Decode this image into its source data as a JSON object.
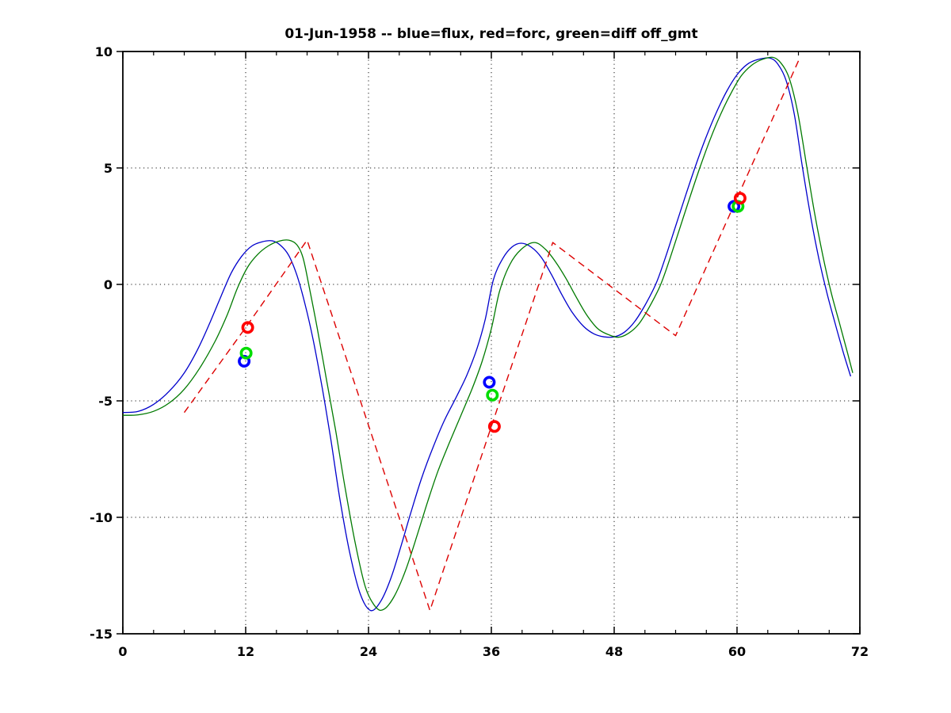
{
  "chart_data": {
    "type": "line",
    "title": "01-Jun-1958 -- blue=flux, red=forc, green=diff off_gmt",
    "xlabel": "",
    "ylabel": "",
    "xlim": [
      0,
      72
    ],
    "ylim": [
      -15,
      10
    ],
    "xticks": [
      0,
      12,
      24,
      36,
      48,
      60,
      72
    ],
    "yticks": [
      -15,
      -10,
      -5,
      0,
      5,
      10
    ],
    "x_minor_tick_step": 3,
    "grid": true,
    "legend_in_title": {
      "blue": "flux",
      "red": "forc",
      "green": "diff"
    },
    "series": [
      {
        "name": "flux",
        "color": "#0000cc",
        "style": "solid",
        "smooth": true,
        "points": [
          [
            0,
            -5.5
          ],
          [
            1.5,
            -5.45
          ],
          [
            3,
            -5.15
          ],
          [
            4.5,
            -4.6
          ],
          [
            6,
            -3.8
          ],
          [
            7.3,
            -2.8
          ],
          [
            8.5,
            -1.65
          ],
          [
            9.6,
            -0.5
          ],
          [
            10.6,
            0.5
          ],
          [
            11.6,
            1.2
          ],
          [
            12.6,
            1.65
          ],
          [
            13.6,
            1.83
          ],
          [
            14.6,
            1.87
          ],
          [
            15.4,
            1.68
          ],
          [
            16.2,
            1.25
          ],
          [
            17,
            0.4
          ],
          [
            17.8,
            -0.85
          ],
          [
            18.6,
            -2.4
          ],
          [
            19.5,
            -4.5
          ],
          [
            20.3,
            -6.6
          ],
          [
            21.2,
            -9.2
          ],
          [
            22.2,
            -11.6
          ],
          [
            23.2,
            -13.3
          ],
          [
            24.2,
            -14
          ],
          [
            25.2,
            -13.6
          ],
          [
            26.2,
            -12.6
          ],
          [
            27.2,
            -11.2
          ],
          [
            28.2,
            -9.7
          ],
          [
            29.2,
            -8.3
          ],
          [
            30.3,
            -7
          ],
          [
            31.4,
            -5.85
          ],
          [
            32.5,
            -4.9
          ],
          [
            33.6,
            -3.9
          ],
          [
            34.6,
            -2.75
          ],
          [
            35.4,
            -1.5
          ],
          [
            36.2,
            0.2
          ],
          [
            37.1,
            1.1
          ],
          [
            38,
            1.6
          ],
          [
            38.9,
            1.77
          ],
          [
            39.9,
            1.6
          ],
          [
            40.9,
            1.15
          ],
          [
            41.9,
            0.4
          ],
          [
            42.9,
            -0.45
          ],
          [
            43.9,
            -1.2
          ],
          [
            45,
            -1.8
          ],
          [
            46,
            -2.12
          ],
          [
            47,
            -2.25
          ],
          [
            48,
            -2.25
          ],
          [
            49,
            -2.05
          ],
          [
            50,
            -1.6
          ],
          [
            51,
            -0.9
          ],
          [
            52.1,
            0.05
          ],
          [
            53,
            1.15
          ],
          [
            54,
            2.5
          ],
          [
            55,
            3.85
          ],
          [
            56,
            5.15
          ],
          [
            57,
            6.35
          ],
          [
            58,
            7.4
          ],
          [
            59,
            8.3
          ],
          [
            60,
            9
          ],
          [
            61,
            9.45
          ],
          [
            62,
            9.65
          ],
          [
            63.2,
            9.72
          ],
          [
            64,
            9.45
          ],
          [
            64.8,
            8.75
          ],
          [
            65.6,
            7.3
          ],
          [
            66.4,
            5
          ],
          [
            67.2,
            2.9
          ],
          [
            68,
            1.1
          ],
          [
            68.8,
            -0.4
          ],
          [
            69.6,
            -1.7
          ],
          [
            70.4,
            -2.95
          ],
          [
            71.1,
            -3.95
          ]
        ]
      },
      {
        "name": "diff",
        "color": "#007a00",
        "style": "solid",
        "smooth": true,
        "points": [
          [
            0,
            -5.62
          ],
          [
            1.5,
            -5.6
          ],
          [
            3,
            -5.45
          ],
          [
            4.5,
            -5.1
          ],
          [
            6,
            -4.5
          ],
          [
            7.5,
            -3.6
          ],
          [
            9,
            -2.45
          ],
          [
            10.2,
            -1.3
          ],
          [
            11.2,
            -0.15
          ],
          [
            12.2,
            0.75
          ],
          [
            13.2,
            1.3
          ],
          [
            14.2,
            1.65
          ],
          [
            15.2,
            1.85
          ],
          [
            16.2,
            1.9
          ],
          [
            17,
            1.7
          ],
          [
            17.6,
            1.15
          ],
          [
            18.2,
            -0.1
          ],
          [
            19,
            -1.9
          ],
          [
            19.9,
            -4.1
          ],
          [
            20.8,
            -6.3
          ],
          [
            21.7,
            -8.7
          ],
          [
            22.7,
            -11.1
          ],
          [
            23.7,
            -13
          ],
          [
            24.7,
            -13.85
          ],
          [
            25.5,
            -13.95
          ],
          [
            26.5,
            -13.4
          ],
          [
            27.6,
            -12.3
          ],
          [
            28.8,
            -10.7
          ],
          [
            29.8,
            -9.3
          ],
          [
            30.8,
            -8
          ],
          [
            31.9,
            -6.8
          ],
          [
            33,
            -5.65
          ],
          [
            34.1,
            -4.5
          ],
          [
            35.1,
            -3.3
          ],
          [
            36,
            -1.9
          ],
          [
            36.8,
            -0.3
          ],
          [
            37.8,
            0.85
          ],
          [
            38.9,
            1.5
          ],
          [
            40.2,
            1.8
          ],
          [
            41.3,
            1.5
          ],
          [
            42.3,
            0.95
          ],
          [
            43.3,
            0.25
          ],
          [
            44.3,
            -0.55
          ],
          [
            45.3,
            -1.3
          ],
          [
            46.4,
            -1.9
          ],
          [
            47.4,
            -2.15
          ],
          [
            48.4,
            -2.27
          ],
          [
            49.4,
            -2.1
          ],
          [
            50.4,
            -1.7
          ],
          [
            51.4,
            -1
          ],
          [
            52.5,
            -0.05
          ],
          [
            53.4,
            1.05
          ],
          [
            54.4,
            2.4
          ],
          [
            55.4,
            3.75
          ],
          [
            56.4,
            5.05
          ],
          [
            57.4,
            6.25
          ],
          [
            58.4,
            7.3
          ],
          [
            59.4,
            8.2
          ],
          [
            60.4,
            8.95
          ],
          [
            61.4,
            9.4
          ],
          [
            62.4,
            9.65
          ],
          [
            63.5,
            9.75
          ],
          [
            64.3,
            9.5
          ],
          [
            65.1,
            8.85
          ],
          [
            65.9,
            7.45
          ],
          [
            66.8,
            5.1
          ],
          [
            67.6,
            3
          ],
          [
            68.4,
            1.2
          ],
          [
            69.2,
            -0.35
          ],
          [
            70,
            -1.65
          ],
          [
            70.8,
            -2.95
          ],
          [
            71.3,
            -3.8
          ]
        ]
      },
      {
        "name": "forc",
        "color": "#dd0000",
        "style": "dashed",
        "smooth": false,
        "points": [
          [
            6,
            -5.5
          ],
          [
            12,
            -1.85
          ],
          [
            18,
            1.9
          ],
          [
            24,
            -6.05
          ],
          [
            30,
            -14
          ],
          [
            36,
            -6.1
          ],
          [
            42,
            1.8
          ],
          [
            48,
            -0.2
          ],
          [
            54,
            -2.2
          ],
          [
            60,
            3.7
          ],
          [
            66,
            9.6
          ]
        ]
      }
    ],
    "markers": [
      {
        "name": "flux-obs",
        "color": "#0000ff",
        "points": [
          [
            11.85,
            -3.3
          ],
          [
            35.8,
            -4.2
          ],
          [
            59.7,
            3.35
          ]
        ]
      },
      {
        "name": "diff-obs",
        "color": "#00dd00",
        "points": [
          [
            12.05,
            -2.95
          ],
          [
            36.1,
            -4.75
          ],
          [
            60.1,
            3.35
          ]
        ]
      },
      {
        "name": "forc-obs",
        "color": "#ff0000",
        "points": [
          [
            12.2,
            -1.85
          ],
          [
            36.3,
            -6.1
          ],
          [
            60.3,
            3.7
          ]
        ]
      }
    ],
    "axis_color": "#000000",
    "grid_color": "#000000"
  }
}
